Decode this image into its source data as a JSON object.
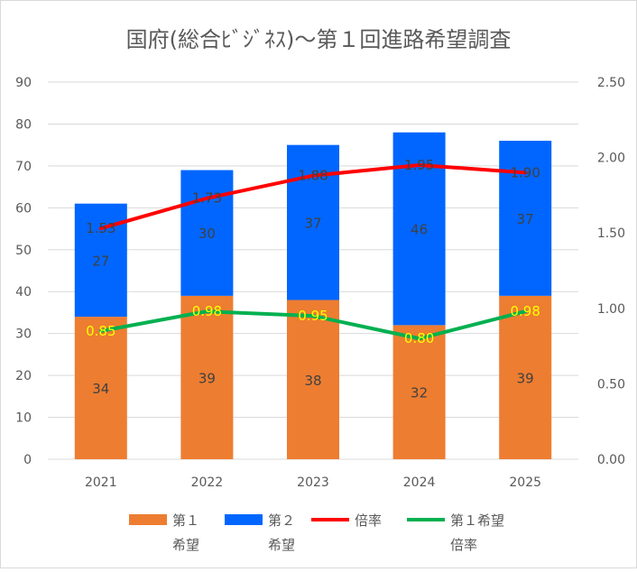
{
  "chart_data": {
    "type": "bar",
    "title": "国府(総合ﾋﾞｼﾞﾈｽ)～第１回進路希望調査",
    "categories": [
      "2021",
      "2022",
      "2023",
      "2024",
      "2025"
    ],
    "series": [
      {
        "name": "第１希望",
        "kind": "bar",
        "stack": "main",
        "axis": "left",
        "color": "#ED7D31",
        "values": [
          34,
          39,
          38,
          32,
          39
        ]
      },
      {
        "name": "第２希望",
        "kind": "bar",
        "stack": "main",
        "axis": "left",
        "color": "#0066FF",
        "values": [
          27,
          30,
          37,
          46,
          37
        ]
      },
      {
        "name": "倍率",
        "kind": "line",
        "axis": "right",
        "color": "#FF0000",
        "label_color": "#404040",
        "values": [
          1.53,
          1.73,
          1.88,
          1.95,
          1.9
        ]
      },
      {
        "name": "第１希望倍率",
        "kind": "line",
        "axis": "right",
        "color": "#00B050",
        "label_color": "#FFFF00",
        "values": [
          0.85,
          0.98,
          0.95,
          0.8,
          0.98
        ]
      }
    ],
    "y_left": {
      "min": 0,
      "max": 90,
      "step": 10,
      "ticks": [
        "0",
        "10",
        "20",
        "30",
        "40",
        "50",
        "60",
        "70",
        "80",
        "90"
      ]
    },
    "y_right": {
      "min": 0,
      "max": 2.5,
      "step": 0.5,
      "ticks": [
        "0.00",
        "0.50",
        "1.00",
        "1.50",
        "2.00",
        "2.50"
      ]
    },
    "grid": true,
    "legend": {
      "position": "bottom",
      "items": [
        {
          "series": 0,
          "label_lines": [
            "第１",
            "希望"
          ],
          "symbol": "box"
        },
        {
          "series": 1,
          "label_lines": [
            "第２",
            "希望"
          ],
          "symbol": "box"
        },
        {
          "series": 2,
          "label_lines": [
            "倍率"
          ],
          "symbol": "line"
        },
        {
          "series": 3,
          "label_lines": [
            "第１希望",
            "倍率"
          ],
          "symbol": "line"
        }
      ]
    }
  }
}
